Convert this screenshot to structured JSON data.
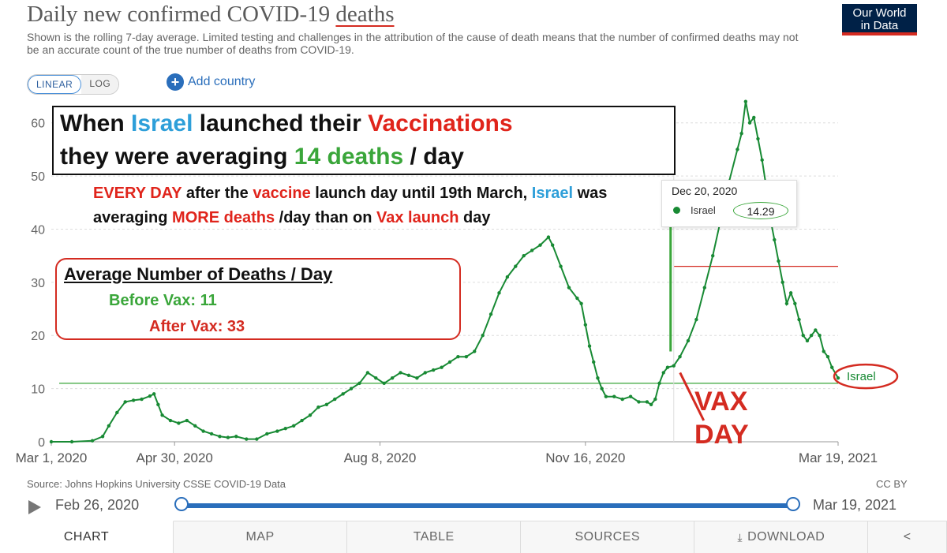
{
  "header": {
    "title_prefix": "Daily new confirmed COVID-19 ",
    "title_highlight": "deaths",
    "subtitle": "Shown is the rolling 7-day average. Limited testing and challenges in the attribution of the cause of death means that the number of confirmed deaths may not be an accurate count of the true number of deaths from COVID-19.",
    "logo_line1": "Our World",
    "logo_line2": "in Data"
  },
  "controls": {
    "linear_label": "LINEAR",
    "log_label": "LOG",
    "add_country_label": "Add country",
    "plus_icon": "plus-icon"
  },
  "annotations": {
    "box1": {
      "l1a": "When ",
      "l1b": "Israel",
      "l1c": " launched their ",
      "l1d": "Vaccinations",
      "l2a": "they were averaging ",
      "l2b": "14 deaths",
      "l2c": " / day"
    },
    "text2": {
      "a": "EVERY DAY",
      "b": " after the ",
      "c": "vaccine",
      "d": " launch day until 19th March, ",
      "e": "Israel",
      "f": " was averaging ",
      "g": "MORE deaths",
      "h": " /day than on ",
      "i": "Vax launch",
      "j": " day"
    },
    "avg_box": {
      "title": "Average Number of Deaths / Day",
      "before": "Before Vax: 11",
      "after": "After Vax: 33"
    },
    "vax_day_line1": "VAX",
    "vax_day_line2": "DAY"
  },
  "tooltip": {
    "date": "Dec 20, 2020",
    "country": "Israel",
    "value": "14.29"
  },
  "chart_data": {
    "type": "line",
    "title": "Daily new confirmed COVID-19 deaths",
    "ylabel": "",
    "ylim": [
      0,
      65
    ],
    "yticks": [
      0,
      10,
      20,
      30,
      40,
      50,
      60
    ],
    "xticks": [
      {
        "label": "Mar 1, 2020",
        "day": 0
      },
      {
        "label": "Apr 30, 2020",
        "day": 60
      },
      {
        "label": "Aug 8, 2020",
        "day": 160
      },
      {
        "label": "Nov 16, 2020",
        "day": 260
      },
      {
        "label": "Mar 19, 2021",
        "day": 383
      }
    ],
    "xlim": [
      0,
      383
    ],
    "series": [
      {
        "name": "Israel",
        "color": "#188a34",
        "points": [
          [
            0,
            0
          ],
          [
            10,
            0
          ],
          [
            20,
            0.2
          ],
          [
            25,
            1
          ],
          [
            28,
            3
          ],
          [
            32,
            5.5
          ],
          [
            36,
            7.5
          ],
          [
            40,
            7.8
          ],
          [
            44,
            8
          ],
          [
            48,
            8.6
          ],
          [
            50,
            9
          ],
          [
            52,
            7
          ],
          [
            54,
            5
          ],
          [
            58,
            4
          ],
          [
            62,
            3.5
          ],
          [
            66,
            4
          ],
          [
            70,
            3
          ],
          [
            74,
            2
          ],
          [
            78,
            1.5
          ],
          [
            82,
            1
          ],
          [
            86,
            0.8
          ],
          [
            90,
            1
          ],
          [
            95,
            0.5
          ],
          [
            100,
            0.5
          ],
          [
            105,
            1.5
          ],
          [
            110,
            2
          ],
          [
            114,
            2.5
          ],
          [
            118,
            3
          ],
          [
            122,
            4
          ],
          [
            126,
            5
          ],
          [
            130,
            6.5
          ],
          [
            134,
            7
          ],
          [
            138,
            8
          ],
          [
            142,
            9
          ],
          [
            146,
            10
          ],
          [
            150,
            11
          ],
          [
            154,
            13
          ],
          [
            158,
            12
          ],
          [
            162,
            11
          ],
          [
            166,
            12
          ],
          [
            170,
            13
          ],
          [
            174,
            12.5
          ],
          [
            178,
            12
          ],
          [
            182,
            13
          ],
          [
            186,
            13.5
          ],
          [
            190,
            14
          ],
          [
            194,
            15
          ],
          [
            198,
            16
          ],
          [
            202,
            16
          ],
          [
            206,
            17
          ],
          [
            210,
            20
          ],
          [
            214,
            24
          ],
          [
            218,
            28
          ],
          [
            222,
            31
          ],
          [
            226,
            33
          ],
          [
            230,
            35
          ],
          [
            234,
            36
          ],
          [
            238,
            37
          ],
          [
            242,
            38.5
          ],
          [
            244,
            37
          ],
          [
            248,
            33
          ],
          [
            252,
            29
          ],
          [
            256,
            27
          ],
          [
            258,
            26
          ],
          [
            260,
            22
          ],
          [
            262,
            18
          ],
          [
            264,
            15
          ],
          [
            266,
            12
          ],
          [
            268,
            10
          ],
          [
            270,
            8.5
          ],
          [
            274,
            8.5
          ],
          [
            278,
            8
          ],
          [
            282,
            8.5
          ],
          [
            286,
            7.5
          ],
          [
            290,
            7.5
          ],
          [
            292,
            7
          ],
          [
            294,
            8
          ],
          [
            296,
            11
          ],
          [
            298,
            13
          ],
          [
            300,
            14
          ],
          [
            303,
            14.29
          ],
          [
            306,
            16
          ],
          [
            310,
            19
          ],
          [
            314,
            23
          ],
          [
            318,
            29
          ],
          [
            322,
            35
          ],
          [
            326,
            42
          ],
          [
            330,
            49
          ],
          [
            334,
            55
          ],
          [
            336,
            58
          ],
          [
            338,
            64
          ],
          [
            340,
            60
          ],
          [
            342,
            61
          ],
          [
            344,
            57
          ],
          [
            346,
            53
          ],
          [
            348,
            48
          ],
          [
            350,
            42
          ],
          [
            352,
            38
          ],
          [
            354,
            34
          ],
          [
            356,
            30
          ],
          [
            358,
            26
          ],
          [
            360,
            28
          ],
          [
            362,
            26
          ],
          [
            364,
            23
          ],
          [
            366,
            20
          ],
          [
            368,
            19
          ],
          [
            370,
            20
          ],
          [
            372,
            21
          ],
          [
            374,
            20
          ],
          [
            376,
            17
          ],
          [
            378,
            16
          ],
          [
            380,
            14
          ],
          [
            383,
            12
          ]
        ]
      }
    ],
    "reference_lines": [
      {
        "label": "Before Vax average",
        "value": 11,
        "color": "#3aa63a"
      },
      {
        "label": "After Vax average",
        "value": 33,
        "color": "#d42b21"
      }
    ],
    "vax_day": 303,
    "end_label": "Israel"
  },
  "footer": {
    "source": "Source: Johns Hopkins University CSSE COVID-19 Data",
    "license": "CC BY",
    "timeline_start": "Feb 26, 2020",
    "timeline_end": "Mar 19, 2021"
  },
  "tabs": [
    {
      "label": "CHART"
    },
    {
      "label": "MAP"
    },
    {
      "label": "TABLE"
    },
    {
      "label": "SOURCES"
    },
    {
      "label": "DOWNLOAD"
    },
    {
      "label": "⟨•"
    }
  ]
}
